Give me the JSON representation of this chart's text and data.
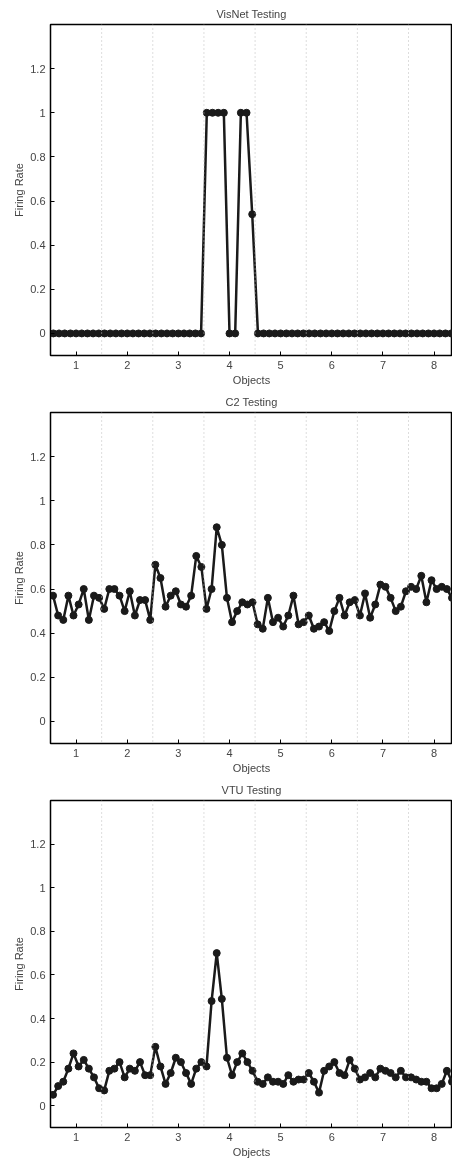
{
  "chart_data": [
    {
      "type": "line",
      "title": "VisNet Testing",
      "xlabel": "Objects",
      "ylabel": "Firing Rate",
      "xlim": [
        0.5,
        8.36
      ],
      "ylim": [
        -0.1,
        1.4
      ],
      "xticks": [
        1,
        2,
        3,
        4,
        5,
        6,
        7,
        8
      ],
      "yticks": [
        0,
        0.2,
        0.4,
        0.6,
        0.8,
        1,
        1.2
      ],
      "grid": false,
      "marker": "circle",
      "line_style": "solid",
      "ref_lines": [
        {
          "axis": "x",
          "value": 1.5,
          "color": "#bbbbbb",
          "line_style": "dotted"
        },
        {
          "axis": "x",
          "value": 2.5,
          "color": "#bbbbbb",
          "line_style": "dotted"
        },
        {
          "axis": "x",
          "value": 3.5,
          "color": "#bbbbbb",
          "line_style": "dotted"
        },
        {
          "axis": "x",
          "value": 4.5,
          "color": "#bbbbbb",
          "line_style": "dotted"
        },
        {
          "axis": "x",
          "value": 5.5,
          "color": "#bbbbbb",
          "line_style": "dotted"
        },
        {
          "axis": "x",
          "value": 6.5,
          "color": "#bbbbbb",
          "line_style": "dotted"
        },
        {
          "axis": "x",
          "value": 7.5,
          "color": "#bbbbbb",
          "line_style": "dotted"
        }
      ],
      "series": [
        {
          "color": "#1a1a1a",
          "x": [
            0.556,
            0.667,
            0.778,
            0.889,
            1.0,
            1.111,
            1.222,
            1.333,
            1.444,
            1.556,
            1.667,
            1.778,
            1.889,
            2.0,
            2.111,
            2.222,
            2.333,
            2.444,
            2.556,
            2.667,
            2.778,
            2.889,
            3.0,
            3.111,
            3.222,
            3.333,
            3.444,
            3.556,
            3.667,
            3.778,
            3.889,
            4.0,
            4.111,
            4.222,
            4.333,
            4.444,
            4.556,
            4.667,
            4.778,
            4.889,
            5.0,
            5.111,
            5.222,
            5.333,
            5.444,
            5.556,
            5.667,
            5.778,
            5.889,
            6.0,
            6.111,
            6.222,
            6.333,
            6.444,
            6.556,
            6.667,
            6.778,
            6.889,
            7.0,
            7.111,
            7.222,
            7.333,
            7.444,
            7.556,
            7.667,
            7.778,
            7.889,
            8.0,
            8.111,
            8.222,
            8.333
          ],
          "values": [
            0,
            0,
            0,
            0,
            0,
            0,
            0,
            0,
            0,
            0,
            0,
            0,
            0,
            0,
            0,
            0,
            0,
            0,
            0,
            0,
            0,
            0,
            0,
            0,
            0,
            0,
            0,
            1,
            1,
            1,
            1,
            0,
            0,
            1,
            1,
            0.54,
            0,
            0,
            0,
            0,
            0,
            0,
            0,
            0,
            0,
            0,
            0,
            0,
            0,
            0,
            0,
            0,
            0,
            0,
            0,
            0,
            0,
            0,
            0,
            0,
            0,
            0,
            0,
            0,
            0,
            0,
            0,
            0,
            0,
            0,
            0
          ]
        }
      ]
    },
    {
      "type": "line",
      "title": "C2 Testing",
      "xlabel": "Objects",
      "ylabel": "Firing Rate",
      "xlim": [
        0.5,
        8.36
      ],
      "ylim": [
        -0.1,
        1.4
      ],
      "xticks": [
        1,
        2,
        3,
        4,
        5,
        6,
        7,
        8
      ],
      "yticks": [
        0,
        0.2,
        0.4,
        0.6,
        0.8,
        1,
        1.2
      ],
      "grid": false,
      "marker": "circle",
      "line_style": "solid",
      "ref_lines": [
        {
          "axis": "x",
          "value": 1.5,
          "color": "#bbbbbb",
          "line_style": "dotted"
        },
        {
          "axis": "x",
          "value": 2.5,
          "color": "#bbbbbb",
          "line_style": "dotted"
        },
        {
          "axis": "x",
          "value": 3.5,
          "color": "#bbbbbb",
          "line_style": "dotted"
        },
        {
          "axis": "x",
          "value": 4.5,
          "color": "#bbbbbb",
          "line_style": "dotted"
        },
        {
          "axis": "x",
          "value": 5.5,
          "color": "#bbbbbb",
          "line_style": "dotted"
        },
        {
          "axis": "x",
          "value": 6.5,
          "color": "#bbbbbb",
          "line_style": "dotted"
        },
        {
          "axis": "x",
          "value": 7.5,
          "color": "#bbbbbb",
          "line_style": "dotted"
        }
      ],
      "series": [
        {
          "color": "#1a1a1a",
          "x": [
            0.55,
            0.65,
            0.75,
            0.85,
            0.95,
            1.05,
            1.15,
            1.25,
            1.35,
            1.45,
            1.55,
            1.65,
            1.75,
            1.85,
            1.95,
            2.05,
            2.15,
            2.25,
            2.35,
            2.45,
            2.55,
            2.65,
            2.75,
            2.85,
            2.95,
            3.05,
            3.15,
            3.25,
            3.35,
            3.45,
            3.55,
            3.65,
            3.75,
            3.85,
            3.95,
            4.05,
            4.15,
            4.25,
            4.35,
            4.45,
            4.55,
            4.65,
            4.75,
            4.85,
            4.95,
            5.05,
            5.15,
            5.25,
            5.35,
            5.45,
            5.55,
            5.65,
            5.75,
            5.85,
            5.95,
            6.05,
            6.15,
            6.25,
            6.35,
            6.45,
            6.55,
            6.65,
            6.75,
            6.85,
            6.95,
            7.05,
            7.15,
            7.25,
            7.35,
            7.45,
            7.55,
            7.65,
            7.75,
            7.85,
            7.95,
            8.05,
            8.15,
            8.25,
            8.35
          ],
          "values": [
            0.57,
            0.48,
            0.46,
            0.57,
            0.48,
            0.53,
            0.6,
            0.46,
            0.57,
            0.56,
            0.51,
            0.6,
            0.6,
            0.57,
            0.5,
            0.59,
            0.48,
            0.55,
            0.55,
            0.46,
            0.71,
            0.65,
            0.52,
            0.57,
            0.59,
            0.53,
            0.52,
            0.57,
            0.75,
            0.7,
            0.51,
            0.6,
            0.88,
            0.8,
            0.56,
            0.45,
            0.5,
            0.54,
            0.53,
            0.54,
            0.44,
            0.42,
            0.56,
            0.45,
            0.47,
            0.43,
            0.48,
            0.57,
            0.44,
            0.45,
            0.48,
            0.42,
            0.43,
            0.45,
            0.41,
            0.5,
            0.56,
            0.48,
            0.54,
            0.55,
            0.48,
            0.58,
            0.47,
            0.53,
            0.62,
            0.61,
            0.56,
            0.5,
            0.52,
            0.59,
            0.61,
            0.6,
            0.66,
            0.54,
            0.64,
            0.6,
            0.61,
            0.6,
            0.56
          ]
        }
      ]
    },
    {
      "type": "line",
      "title": "VTU Testing",
      "xlabel": "Objects",
      "ylabel": "Firing Rate",
      "xlim": [
        0.5,
        8.36
      ],
      "ylim": [
        -0.1,
        1.4
      ],
      "xticks": [
        1,
        2,
        3,
        4,
        5,
        6,
        7,
        8
      ],
      "yticks": [
        0,
        0.2,
        0.4,
        0.6,
        0.8,
        1,
        1.2
      ],
      "grid": false,
      "marker": "circle",
      "line_style": "solid",
      "ref_lines": [
        {
          "axis": "x",
          "value": 1.5,
          "color": "#bbbbbb",
          "line_style": "dotted"
        },
        {
          "axis": "x",
          "value": 2.5,
          "color": "#bbbbbb",
          "line_style": "dotted"
        },
        {
          "axis": "x",
          "value": 3.5,
          "color": "#bbbbbb",
          "line_style": "dotted"
        },
        {
          "axis": "x",
          "value": 4.5,
          "color": "#bbbbbb",
          "line_style": "dotted"
        },
        {
          "axis": "x",
          "value": 5.5,
          "color": "#bbbbbb",
          "line_style": "dotted"
        },
        {
          "axis": "x",
          "value": 6.5,
          "color": "#bbbbbb",
          "line_style": "dotted"
        },
        {
          "axis": "x",
          "value": 7.5,
          "color": "#bbbbbb",
          "line_style": "dotted"
        }
      ],
      "series": [
        {
          "color": "#1a1a1a",
          "x": [
            0.55,
            0.65,
            0.75,
            0.85,
            0.95,
            1.05,
            1.15,
            1.25,
            1.35,
            1.45,
            1.55,
            1.65,
            1.75,
            1.85,
            1.95,
            2.05,
            2.15,
            2.25,
            2.35,
            2.45,
            2.55,
            2.65,
            2.75,
            2.85,
            2.95,
            3.05,
            3.15,
            3.25,
            3.35,
            3.45,
            3.55,
            3.65,
            3.75,
            3.85,
            3.95,
            4.05,
            4.15,
            4.25,
            4.35,
            4.45,
            4.55,
            4.65,
            4.75,
            4.85,
            4.95,
            5.05,
            5.15,
            5.25,
            5.35,
            5.45,
            5.55,
            5.65,
            5.75,
            5.85,
            5.95,
            6.05,
            6.15,
            6.25,
            6.35,
            6.45,
            6.55,
            6.65,
            6.75,
            6.85,
            6.95,
            7.05,
            7.15,
            7.25,
            7.35,
            7.45,
            7.55,
            7.65,
            7.75,
            7.85,
            7.95,
            8.05,
            8.15,
            8.25,
            8.35
          ],
          "values": [
            0.05,
            0.09,
            0.11,
            0.17,
            0.24,
            0.18,
            0.21,
            0.17,
            0.13,
            0.08,
            0.07,
            0.16,
            0.17,
            0.2,
            0.13,
            0.17,
            0.16,
            0.2,
            0.14,
            0.14,
            0.27,
            0.18,
            0.1,
            0.15,
            0.22,
            0.2,
            0.15,
            0.1,
            0.17,
            0.2,
            0.18,
            0.48,
            0.7,
            0.49,
            0.22,
            0.14,
            0.2,
            0.24,
            0.2,
            0.16,
            0.11,
            0.1,
            0.13,
            0.11,
            0.11,
            0.1,
            0.14,
            0.11,
            0.12,
            0.12,
            0.15,
            0.11,
            0.06,
            0.16,
            0.18,
            0.2,
            0.15,
            0.14,
            0.21,
            0.17,
            0.12,
            0.13,
            0.15,
            0.13,
            0.17,
            0.16,
            0.15,
            0.13,
            0.16,
            0.13,
            0.13,
            0.12,
            0.11,
            0.11,
            0.08,
            0.08,
            0.1,
            0.16,
            0.11
          ]
        }
      ]
    }
  ]
}
